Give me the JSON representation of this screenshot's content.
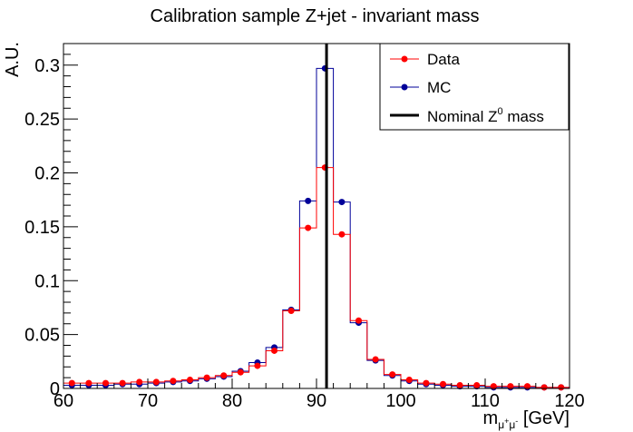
{
  "chart_data": {
    "type": "line",
    "title": "Calibration sample Z+jet - invariant mass",
    "xlabel": {
      "base": "m",
      "sub": "μ",
      "sub_sup1": "+",
      "sub_mid": "μ",
      "sub_sup2": "-",
      "unit": " [GeV]"
    },
    "ylabel": "A.U.",
    "xlim": [
      60,
      120
    ],
    "ylim": [
      0,
      0.32
    ],
    "x_ticks": [
      60,
      70,
      80,
      90,
      100,
      110,
      120
    ],
    "x_tick_labels": [
      "60",
      "70",
      "80",
      "90",
      "100",
      "110",
      "120"
    ],
    "y_ticks": [
      0,
      0.05,
      0.1,
      0.15,
      0.2,
      0.25,
      0.3
    ],
    "y_tick_labels": [
      "0",
      "0.05",
      "0.1",
      "0.15",
      "0.2",
      "0.25",
      "0.3"
    ],
    "grid": false,
    "bin_edges": [
      60,
      62,
      64,
      66,
      68,
      70,
      72,
      74,
      76,
      78,
      80,
      82,
      84,
      86,
      88,
      90,
      92,
      94,
      96,
      98,
      100,
      102,
      104,
      106,
      108,
      110,
      112,
      114,
      116,
      118,
      120
    ],
    "x": [
      61,
      63,
      65,
      67,
      69,
      71,
      73,
      75,
      77,
      79,
      81,
      83,
      85,
      87,
      89,
      91,
      93,
      95,
      97,
      99,
      101,
      103,
      105,
      107,
      109,
      111,
      113,
      115,
      117,
      119
    ],
    "series": [
      {
        "name": "Data",
        "color": "#ff0000",
        "values": [
          0.005,
          0.005,
          0.005,
          0.005,
          0.006,
          0.006,
          0.007,
          0.008,
          0.01,
          0.012,
          0.015,
          0.021,
          0.035,
          0.072,
          0.149,
          0.205,
          0.143,
          0.063,
          0.027,
          0.013,
          0.008,
          0.005,
          0.004,
          0.003,
          0.003,
          0.002,
          0.002,
          0.002,
          0.001,
          0.001
        ]
      },
      {
        "name": "MC",
        "color": "#000099",
        "values": [
          0.003,
          0.003,
          0.003,
          0.004,
          0.004,
          0.005,
          0.006,
          0.007,
          0.009,
          0.011,
          0.016,
          0.024,
          0.038,
          0.073,
          0.174,
          0.297,
          0.173,
          0.061,
          0.026,
          0.012,
          0.007,
          0.004,
          0.003,
          0.002,
          0.002,
          0.001,
          0.001,
          0.001,
          0.001,
          0.001
        ]
      }
    ],
    "reference_line": {
      "name": "Nominal Z",
      "sup": "0",
      "name_suffix": " mass",
      "x": 91.19,
      "color": "#000000"
    },
    "legend_position": "top-right"
  }
}
